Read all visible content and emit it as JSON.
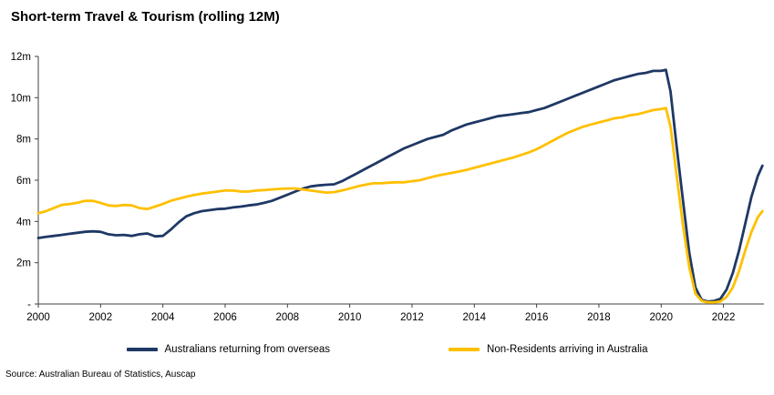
{
  "title": "Short-term Travel & Tourism (rolling 12M)",
  "source": "Source: Australian Bureau of Statistics, Auscap",
  "chart_data": {
    "type": "line",
    "title": "Short-term Travel & Tourism (rolling 12M)",
    "xlabel": "",
    "ylabel": "",
    "xlim": [
      2000,
      2023.3
    ],
    "ylim": [
      0,
      12
    ],
    "grid": false,
    "legend_position": "bottom",
    "x_ticks": [
      2000,
      2002,
      2004,
      2006,
      2008,
      2010,
      2012,
      2014,
      2016,
      2018,
      2020,
      2022
    ],
    "y_ticks": [
      0,
      2,
      4,
      6,
      8,
      10,
      12
    ],
    "y_tick_labels": [
      "-",
      "2m",
      "4m",
      "6m",
      "8m",
      "10m",
      "12m"
    ],
    "axis_color": "#404040",
    "series": [
      {
        "name": "Australians returning from overseas",
        "color": "#1f3864",
        "points": [
          [
            2000.0,
            3.2
          ],
          [
            2000.25,
            3.25
          ],
          [
            2000.5,
            3.3
          ],
          [
            2000.75,
            3.35
          ],
          [
            2001.0,
            3.4
          ],
          [
            2001.25,
            3.45
          ],
          [
            2001.5,
            3.5
          ],
          [
            2001.75,
            3.52
          ],
          [
            2002.0,
            3.5
          ],
          [
            2002.25,
            3.38
          ],
          [
            2002.5,
            3.33
          ],
          [
            2002.75,
            3.35
          ],
          [
            2003.0,
            3.3
          ],
          [
            2003.25,
            3.38
          ],
          [
            2003.5,
            3.42
          ],
          [
            2003.75,
            3.28
          ],
          [
            2004.0,
            3.3
          ],
          [
            2004.25,
            3.6
          ],
          [
            2004.5,
            3.95
          ],
          [
            2004.75,
            4.25
          ],
          [
            2005.0,
            4.4
          ],
          [
            2005.25,
            4.5
          ],
          [
            2005.5,
            4.55
          ],
          [
            2005.75,
            4.6
          ],
          [
            2006.0,
            4.62
          ],
          [
            2006.25,
            4.68
          ],
          [
            2006.5,
            4.72
          ],
          [
            2006.75,
            4.78
          ],
          [
            2007.0,
            4.82
          ],
          [
            2007.25,
            4.9
          ],
          [
            2007.5,
            5.0
          ],
          [
            2007.75,
            5.15
          ],
          [
            2008.0,
            5.3
          ],
          [
            2008.25,
            5.45
          ],
          [
            2008.5,
            5.6
          ],
          [
            2008.75,
            5.7
          ],
          [
            2009.0,
            5.75
          ],
          [
            2009.25,
            5.78
          ],
          [
            2009.5,
            5.8
          ],
          [
            2009.75,
            5.95
          ],
          [
            2010.0,
            6.15
          ],
          [
            2010.25,
            6.35
          ],
          [
            2010.5,
            6.55
          ],
          [
            2010.75,
            6.75
          ],
          [
            2011.0,
            6.95
          ],
          [
            2011.25,
            7.15
          ],
          [
            2011.5,
            7.35
          ],
          [
            2011.75,
            7.55
          ],
          [
            2012.0,
            7.7
          ],
          [
            2012.25,
            7.85
          ],
          [
            2012.5,
            8.0
          ],
          [
            2012.75,
            8.1
          ],
          [
            2013.0,
            8.2
          ],
          [
            2013.25,
            8.4
          ],
          [
            2013.5,
            8.55
          ],
          [
            2013.75,
            8.7
          ],
          [
            2014.0,
            8.8
          ],
          [
            2014.25,
            8.9
          ],
          [
            2014.5,
            9.0
          ],
          [
            2014.75,
            9.1
          ],
          [
            2015.0,
            9.15
          ],
          [
            2015.25,
            9.2
          ],
          [
            2015.5,
            9.25
          ],
          [
            2015.75,
            9.3
          ],
          [
            2016.0,
            9.4
          ],
          [
            2016.25,
            9.5
          ],
          [
            2016.5,
            9.65
          ],
          [
            2016.75,
            9.8
          ],
          [
            2017.0,
            9.95
          ],
          [
            2017.25,
            10.1
          ],
          [
            2017.5,
            10.25
          ],
          [
            2017.75,
            10.4
          ],
          [
            2018.0,
            10.55
          ],
          [
            2018.25,
            10.7
          ],
          [
            2018.5,
            10.85
          ],
          [
            2018.75,
            10.95
          ],
          [
            2019.0,
            11.05
          ],
          [
            2019.25,
            11.15
          ],
          [
            2019.5,
            11.2
          ],
          [
            2019.75,
            11.3
          ],
          [
            2020.0,
            11.3
          ],
          [
            2020.15,
            11.35
          ],
          [
            2020.3,
            10.3
          ],
          [
            2020.5,
            7.6
          ],
          [
            2020.7,
            5.0
          ],
          [
            2020.9,
            2.5
          ],
          [
            2021.1,
            0.8
          ],
          [
            2021.3,
            0.2
          ],
          [
            2021.5,
            0.12
          ],
          [
            2021.7,
            0.15
          ],
          [
            2021.9,
            0.25
          ],
          [
            2022.1,
            0.7
          ],
          [
            2022.3,
            1.5
          ],
          [
            2022.5,
            2.6
          ],
          [
            2022.7,
            3.9
          ],
          [
            2022.9,
            5.2
          ],
          [
            2023.1,
            6.2
          ],
          [
            2023.25,
            6.7
          ]
        ]
      },
      {
        "name": "Non-Residents arriving in Australia",
        "color": "#ffc000",
        "points": [
          [
            2000.0,
            4.4
          ],
          [
            2000.25,
            4.5
          ],
          [
            2000.5,
            4.65
          ],
          [
            2000.75,
            4.8
          ],
          [
            2001.0,
            4.85
          ],
          [
            2001.25,
            4.9
          ],
          [
            2001.5,
            5.0
          ],
          [
            2001.75,
            5.0
          ],
          [
            2002.0,
            4.9
          ],
          [
            2002.25,
            4.78
          ],
          [
            2002.5,
            4.75
          ],
          [
            2002.75,
            4.8
          ],
          [
            2003.0,
            4.78
          ],
          [
            2003.25,
            4.65
          ],
          [
            2003.5,
            4.6
          ],
          [
            2003.75,
            4.72
          ],
          [
            2004.0,
            4.85
          ],
          [
            2004.25,
            5.0
          ],
          [
            2004.5,
            5.1
          ],
          [
            2004.75,
            5.2
          ],
          [
            2005.0,
            5.28
          ],
          [
            2005.25,
            5.35
          ],
          [
            2005.5,
            5.4
          ],
          [
            2005.75,
            5.45
          ],
          [
            2006.0,
            5.5
          ],
          [
            2006.25,
            5.5
          ],
          [
            2006.5,
            5.45
          ],
          [
            2006.75,
            5.45
          ],
          [
            2007.0,
            5.5
          ],
          [
            2007.25,
            5.52
          ],
          [
            2007.5,
            5.55
          ],
          [
            2007.75,
            5.58
          ],
          [
            2008.0,
            5.6
          ],
          [
            2008.25,
            5.6
          ],
          [
            2008.5,
            5.55
          ],
          [
            2008.75,
            5.5
          ],
          [
            2009.0,
            5.45
          ],
          [
            2009.25,
            5.4
          ],
          [
            2009.5,
            5.42
          ],
          [
            2009.75,
            5.5
          ],
          [
            2010.0,
            5.6
          ],
          [
            2010.25,
            5.7
          ],
          [
            2010.5,
            5.78
          ],
          [
            2010.75,
            5.85
          ],
          [
            2011.0,
            5.85
          ],
          [
            2011.25,
            5.88
          ],
          [
            2011.5,
            5.9
          ],
          [
            2011.75,
            5.9
          ],
          [
            2012.0,
            5.95
          ],
          [
            2012.25,
            6.0
          ],
          [
            2012.5,
            6.1
          ],
          [
            2012.75,
            6.2
          ],
          [
            2013.0,
            6.28
          ],
          [
            2013.25,
            6.35
          ],
          [
            2013.5,
            6.42
          ],
          [
            2013.75,
            6.5
          ],
          [
            2014.0,
            6.6
          ],
          [
            2014.25,
            6.7
          ],
          [
            2014.5,
            6.8
          ],
          [
            2014.75,
            6.9
          ],
          [
            2015.0,
            7.0
          ],
          [
            2015.25,
            7.1
          ],
          [
            2015.5,
            7.22
          ],
          [
            2015.75,
            7.35
          ],
          [
            2016.0,
            7.5
          ],
          [
            2016.25,
            7.7
          ],
          [
            2016.5,
            7.9
          ],
          [
            2016.75,
            8.1
          ],
          [
            2017.0,
            8.3
          ],
          [
            2017.25,
            8.45
          ],
          [
            2017.5,
            8.6
          ],
          [
            2017.75,
            8.7
          ],
          [
            2018.0,
            8.8
          ],
          [
            2018.25,
            8.9
          ],
          [
            2018.5,
            9.0
          ],
          [
            2018.75,
            9.05
          ],
          [
            2019.0,
            9.15
          ],
          [
            2019.25,
            9.2
          ],
          [
            2019.5,
            9.3
          ],
          [
            2019.75,
            9.4
          ],
          [
            2020.0,
            9.45
          ],
          [
            2020.15,
            9.5
          ],
          [
            2020.3,
            8.6
          ],
          [
            2020.5,
            6.2
          ],
          [
            2020.7,
            3.8
          ],
          [
            2020.9,
            1.8
          ],
          [
            2021.1,
            0.5
          ],
          [
            2021.3,
            0.15
          ],
          [
            2021.5,
            0.08
          ],
          [
            2021.7,
            0.08
          ],
          [
            2021.9,
            0.12
          ],
          [
            2022.1,
            0.35
          ],
          [
            2022.3,
            0.8
          ],
          [
            2022.5,
            1.6
          ],
          [
            2022.7,
            2.6
          ],
          [
            2022.9,
            3.5
          ],
          [
            2023.1,
            4.2
          ],
          [
            2023.25,
            4.5
          ]
        ]
      }
    ]
  }
}
